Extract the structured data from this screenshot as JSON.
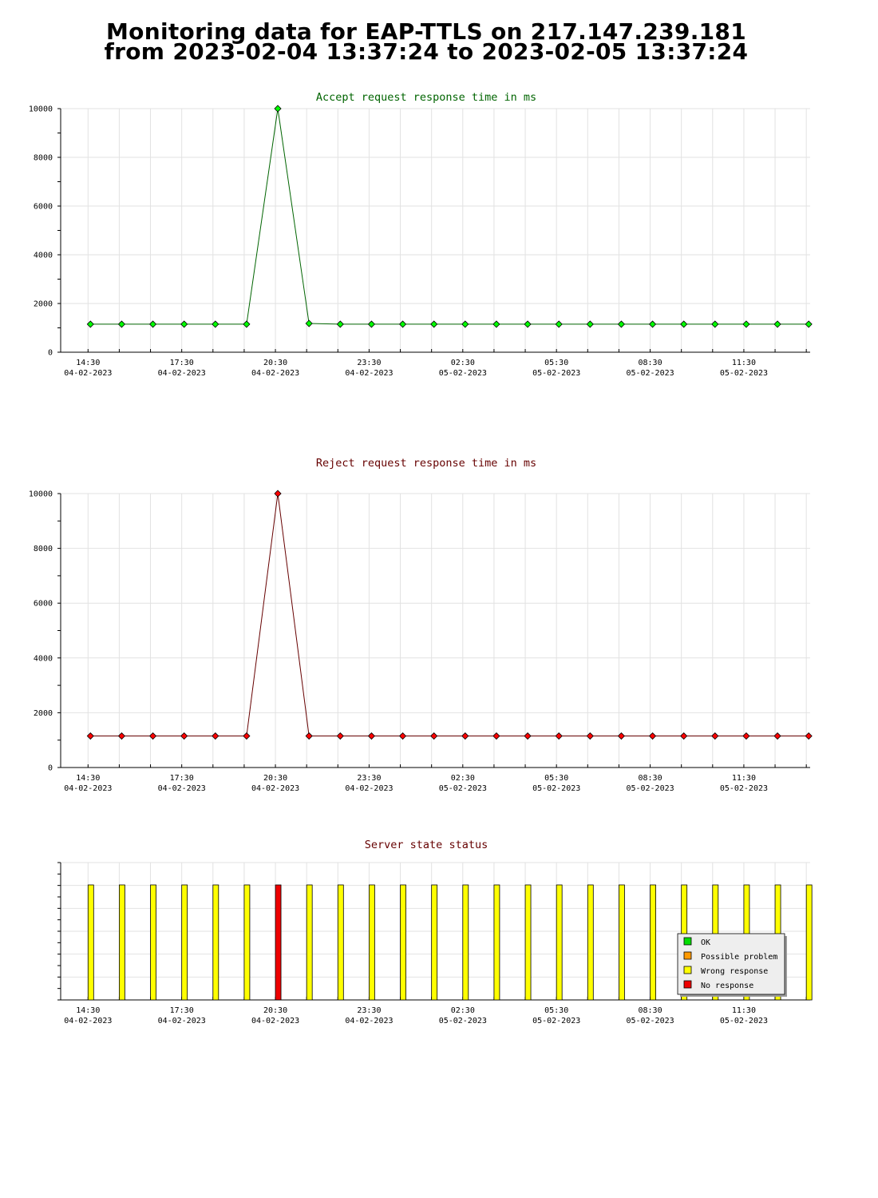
{
  "page": {
    "title_line_1": "Monitoring data for EAP-TTLS on 217.147.239.181",
    "title_line_2": "from 2023-02-04 13:37:24 to 2023-02-05 13:37:24"
  },
  "x_axis": {
    "ticks": [
      {
        "time": "14:30",
        "date": "04-02-2023"
      },
      {
        "time": "17:30",
        "date": "04-02-2023"
      },
      {
        "time": "20:30",
        "date": "04-02-2023"
      },
      {
        "time": "23:30",
        "date": "04-02-2023"
      },
      {
        "time": "02:30",
        "date": "05-02-2023"
      },
      {
        "time": "05:30",
        "date": "05-02-2023"
      },
      {
        "time": "08:30",
        "date": "05-02-2023"
      },
      {
        "time": "11:30",
        "date": "05-02-2023"
      }
    ]
  },
  "chart_data": [
    {
      "type": "line",
      "title": "Accept request response time in ms",
      "title_color": "#006400",
      "line_color": "#006400",
      "marker_color": "#00ff00",
      "ylim": [
        0,
        10000
      ],
      "y_ticks": [
        "0",
        "2000",
        "4000",
        "6000",
        "8000",
        "10000"
      ],
      "x": [
        "2023-02-04 14:30",
        "2023-02-04 15:30",
        "2023-02-04 16:30",
        "2023-02-04 17:30",
        "2023-02-04 18:30",
        "2023-02-04 19:30",
        "2023-02-04 20:30",
        "2023-02-04 21:30",
        "2023-02-04 22:30",
        "2023-02-04 23:30",
        "2023-02-05 00:30",
        "2023-02-05 01:30",
        "2023-02-05 02:30",
        "2023-02-05 03:30",
        "2023-02-05 04:30",
        "2023-02-05 05:30",
        "2023-02-05 06:30",
        "2023-02-05 07:30",
        "2023-02-05 08:30",
        "2023-02-05 09:30",
        "2023-02-05 10:30",
        "2023-02-05 11:30",
        "2023-02-05 12:30",
        "2023-02-05 13:30"
      ],
      "values": [
        1150,
        1150,
        1150,
        1150,
        1150,
        1150,
        10000,
        1180,
        1150,
        1150,
        1150,
        1150,
        1150,
        1150,
        1150,
        1150,
        1150,
        1150,
        1150,
        1150,
        1150,
        1150,
        1150,
        1150
      ]
    },
    {
      "type": "line",
      "title": "Reject request response time in ms",
      "title_color": "#660000",
      "line_color": "#660000",
      "marker_color": "#ff0000",
      "ylim": [
        0,
        10000
      ],
      "y_ticks": [
        "0",
        "2000",
        "4000",
        "6000",
        "8000",
        "10000"
      ],
      "x": [
        "2023-02-04 14:30",
        "2023-02-04 15:30",
        "2023-02-04 16:30",
        "2023-02-04 17:30",
        "2023-02-04 18:30",
        "2023-02-04 19:30",
        "2023-02-04 20:30",
        "2023-02-04 21:30",
        "2023-02-04 22:30",
        "2023-02-04 23:30",
        "2023-02-05 00:30",
        "2023-02-05 01:30",
        "2023-02-05 02:30",
        "2023-02-05 03:30",
        "2023-02-05 04:30",
        "2023-02-05 05:30",
        "2023-02-05 06:30",
        "2023-02-05 07:30",
        "2023-02-05 08:30",
        "2023-02-05 09:30",
        "2023-02-05 10:30",
        "2023-02-05 11:30",
        "2023-02-05 12:30",
        "2023-02-05 13:30"
      ],
      "values": [
        1150,
        1150,
        1150,
        1150,
        1150,
        1150,
        10000,
        1150,
        1150,
        1150,
        1150,
        1150,
        1150,
        1150,
        1150,
        1150,
        1150,
        1150,
        1150,
        1150,
        1150,
        1150,
        1150,
        1150
      ]
    },
    {
      "type": "bar",
      "title": "Server state status",
      "title_color": "#660000",
      "x": [
        "2023-02-04 14:30",
        "2023-02-04 15:30",
        "2023-02-04 16:30",
        "2023-02-04 17:30",
        "2023-02-04 18:30",
        "2023-02-04 19:30",
        "2023-02-04 20:30",
        "2023-02-04 21:30",
        "2023-02-04 22:30",
        "2023-02-04 23:30",
        "2023-02-05 00:30",
        "2023-02-05 01:30",
        "2023-02-05 02:30",
        "2023-02-05 03:30",
        "2023-02-05 04:30",
        "2023-02-05 05:30",
        "2023-02-05 06:30",
        "2023-02-05 07:30",
        "2023-02-05 08:30",
        "2023-02-05 09:30",
        "2023-02-05 10:30",
        "2023-02-05 11:30",
        "2023-02-05 12:30",
        "2023-02-05 13:30"
      ],
      "states": [
        "Wrong response",
        "Wrong response",
        "Wrong response",
        "Wrong response",
        "Wrong response",
        "Wrong response",
        "No response",
        "Wrong response",
        "Wrong response",
        "Wrong response",
        "Wrong response",
        "Wrong response",
        "Wrong response",
        "Wrong response",
        "Wrong response",
        "Wrong response",
        "Wrong response",
        "Wrong response",
        "Wrong response",
        "Wrong response",
        "Wrong response",
        "Wrong response",
        "Wrong response",
        "Wrong response"
      ],
      "legend": [
        {
          "label": "OK",
          "color": "#00dd00"
        },
        {
          "label": "Possible problem",
          "color": "#ff9900"
        },
        {
          "label": "Wrong response",
          "color": "#ffff00"
        },
        {
          "label": "No response",
          "color": "#ee0000"
        }
      ],
      "legend_position": "bottom-right"
    }
  ]
}
